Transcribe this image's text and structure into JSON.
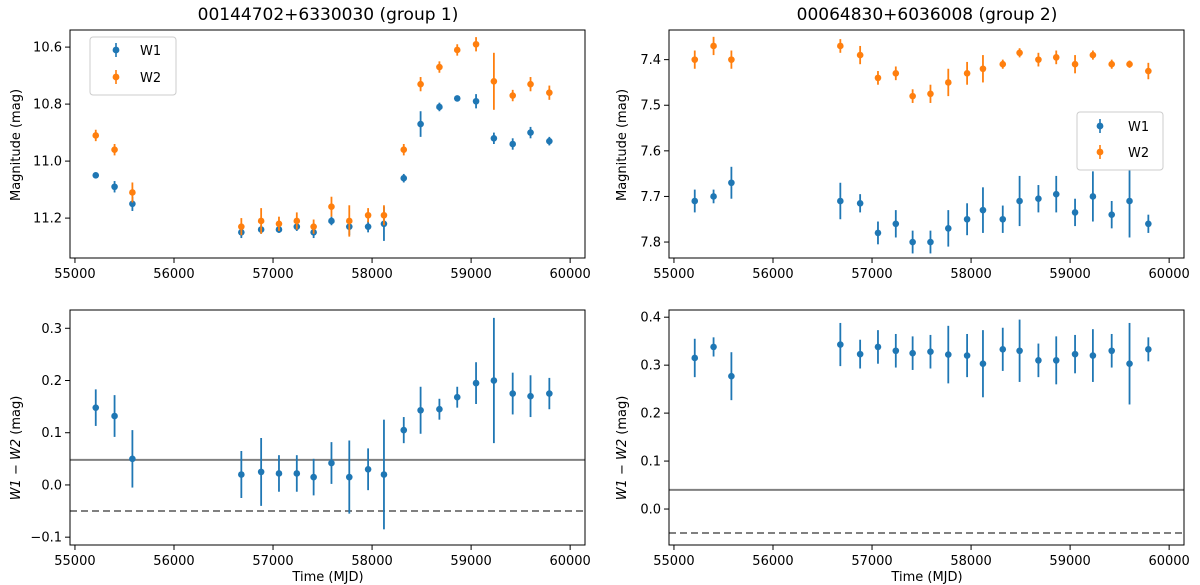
{
  "colors": {
    "w1": "#1f77b4",
    "w2": "#ff7f0e",
    "ref_line": "#808080",
    "axes": "#000000"
  },
  "chart_data": [
    {
      "type": "scatter",
      "title": "00144702+6330030 (group 1)",
      "xlabel": "",
      "ylabel": "Magnitude (mag)",
      "xlim": [
        54950,
        60150
      ],
      "ylim": [
        11.34,
        10.54
      ],
      "y_inverted": true,
      "xticks": [
        55000,
        56000,
        57000,
        58000,
        59000,
        60000
      ],
      "xtick_labels": [
        "55000",
        "56000",
        "57000",
        "58000",
        "59000",
        "60000"
      ],
      "yticks": [
        10.6,
        10.8,
        11.0,
        11.2
      ],
      "ytick_labels": [
        "10.6",
        "10.8",
        "11.0",
        "11.2"
      ],
      "legend": {
        "position": "top-left",
        "entries": [
          "W1",
          "W2"
        ]
      },
      "series": [
        {
          "name": "W1",
          "color_key": "w1",
          "x": [
            55210,
            55400,
            55580,
            56680,
            56880,
            57060,
            57240,
            57410,
            57590,
            57770,
            57960,
            58120,
            58320,
            58490,
            58680,
            58860,
            59050,
            59230,
            59420,
            59600,
            59790
          ],
          "y": [
            11.05,
            11.09,
            11.15,
            11.25,
            11.24,
            11.24,
            11.23,
            11.25,
            11.21,
            11.23,
            11.23,
            11.22,
            11.06,
            10.87,
            10.81,
            10.78,
            10.79,
            10.92,
            10.94,
            10.9,
            10.93
          ],
          "err": [
            0.008,
            0.02,
            0.025,
            0.02,
            0.015,
            0.012,
            0.015,
            0.02,
            0.015,
            0.03,
            0.02,
            0.06,
            0.015,
            0.045,
            0.015,
            0.01,
            0.025,
            0.02,
            0.02,
            0.02,
            0.015
          ]
        },
        {
          "name": "W2",
          "color_key": "w2",
          "x": [
            55210,
            55400,
            55580,
            56680,
            56880,
            57060,
            57240,
            57410,
            57590,
            57770,
            57960,
            58120,
            58320,
            58490,
            58680,
            58860,
            59050,
            59230,
            59420,
            59600,
            59790
          ],
          "y": [
            10.91,
            10.96,
            11.11,
            11.23,
            11.21,
            11.22,
            11.21,
            11.23,
            11.16,
            11.21,
            11.19,
            11.19,
            10.96,
            10.73,
            10.67,
            10.61,
            10.59,
            10.72,
            10.77,
            10.73,
            10.76
          ],
          "err": [
            0.02,
            0.02,
            0.035,
            0.03,
            0.045,
            0.025,
            0.03,
            0.025,
            0.035,
            0.055,
            0.025,
            0.035,
            0.02,
            0.025,
            0.02,
            0.02,
            0.025,
            0.1,
            0.02,
            0.025,
            0.025
          ]
        }
      ]
    },
    {
      "type": "scatter",
      "title": "00064830+6036008 (group 2)",
      "xlabel": "",
      "ylabel": "Magnitude (mag)",
      "xlim": [
        54950,
        60150
      ],
      "ylim": [
        7.835,
        7.335
      ],
      "y_inverted": true,
      "xticks": [
        55000,
        56000,
        57000,
        58000,
        59000,
        60000
      ],
      "xtick_labels": [
        "55000",
        "56000",
        "57000",
        "58000",
        "59000",
        "60000"
      ],
      "yticks": [
        7.4,
        7.5,
        7.6,
        7.7,
        7.8
      ],
      "ytick_labels": [
        "7.4",
        "7.5",
        "7.6",
        "7.7",
        "7.8"
      ],
      "legend": {
        "position": "center-right",
        "entries": [
          "W1",
          "W2"
        ]
      },
      "series": [
        {
          "name": "W1",
          "color_key": "w1",
          "x": [
            55210,
            55400,
            55580,
            56680,
            56880,
            57060,
            57240,
            57410,
            57590,
            57770,
            57960,
            58120,
            58320,
            58490,
            58680,
            58860,
            59050,
            59230,
            59420,
            59600,
            59790
          ],
          "y": [
            7.71,
            7.7,
            7.67,
            7.71,
            7.715,
            7.78,
            7.76,
            7.8,
            7.8,
            7.77,
            7.75,
            7.73,
            7.75,
            7.71,
            7.705,
            7.695,
            7.735,
            7.7,
            7.74,
            7.71,
            7.76
          ],
          "err": [
            0.025,
            0.015,
            0.035,
            0.04,
            0.02,
            0.025,
            0.03,
            0.025,
            0.025,
            0.04,
            0.035,
            0.05,
            0.03,
            0.055,
            0.03,
            0.04,
            0.03,
            0.055,
            0.03,
            0.08,
            0.02
          ]
        },
        {
          "name": "W2",
          "color_key": "w2",
          "x": [
            55210,
            55400,
            55580,
            56680,
            56880,
            57060,
            57240,
            57410,
            57590,
            57770,
            57960,
            58120,
            58320,
            58490,
            58680,
            58860,
            59050,
            59230,
            59420,
            59600,
            59790
          ],
          "y": [
            7.4,
            7.37,
            7.4,
            7.37,
            7.39,
            7.44,
            7.43,
            7.48,
            7.475,
            7.45,
            7.43,
            7.42,
            7.41,
            7.385,
            7.4,
            7.395,
            7.41,
            7.39,
            7.41,
            7.41,
            7.425
          ],
          "err": [
            0.02,
            0.02,
            0.02,
            0.015,
            0.02,
            0.015,
            0.015,
            0.015,
            0.02,
            0.03,
            0.025,
            0.03,
            0.01,
            0.01,
            0.015,
            0.015,
            0.02,
            0.01,
            0.01,
            0.008,
            0.018
          ]
        }
      ]
    },
    {
      "type": "scatter",
      "title": "",
      "xlabel": "Time (MJD)",
      "ylabel_main": "W1 − W2",
      "ylabel_unit": " (mag)",
      "xlim": [
        54950,
        60150
      ],
      "ylim": [
        -0.115,
        0.335
      ],
      "y_inverted": false,
      "xticks": [
        55000,
        56000,
        57000,
        58000,
        59000,
        60000
      ],
      "xtick_labels": [
        "55000",
        "56000",
        "57000",
        "58000",
        "59000",
        "60000"
      ],
      "yticks": [
        -0.1,
        0.0,
        0.1,
        0.2,
        0.3
      ],
      "ytick_labels": [
        "−0.1",
        "0.0",
        "0.1",
        "0.2",
        "0.3"
      ],
      "hlines": [
        {
          "y": 0.048,
          "style": "solid"
        },
        {
          "y": -0.05,
          "style": "dashed"
        }
      ],
      "series": [
        {
          "name": "W1-W2",
          "color_key": "w1",
          "x": [
            55210,
            55400,
            55580,
            56680,
            56880,
            57060,
            57240,
            57410,
            57590,
            57770,
            57960,
            58120,
            58320,
            58490,
            58680,
            58860,
            59050,
            59230,
            59420,
            59600,
            59790
          ],
          "y": [
            0.148,
            0.132,
            0.05,
            0.02,
            0.025,
            0.022,
            0.022,
            0.015,
            0.042,
            0.015,
            0.03,
            0.02,
            0.105,
            0.143,
            0.145,
            0.168,
            0.195,
            0.2,
            0.175,
            0.17,
            0.175
          ],
          "err": [
            0.035,
            0.04,
            0.055,
            0.045,
            0.065,
            0.035,
            0.035,
            0.035,
            0.04,
            0.07,
            0.04,
            0.105,
            0.025,
            0.045,
            0.02,
            0.02,
            0.04,
            0.12,
            0.04,
            0.04,
            0.03
          ]
        }
      ]
    },
    {
      "type": "scatter",
      "title": "",
      "xlabel": "Time (MJD)",
      "ylabel_main": "W1 − W2",
      "ylabel_unit": " (mag)",
      "xlim": [
        54950,
        60150
      ],
      "ylim": [
        -0.075,
        0.415
      ],
      "y_inverted": false,
      "xticks": [
        55000,
        56000,
        57000,
        58000,
        59000,
        60000
      ],
      "xtick_labels": [
        "55000",
        "56000",
        "57000",
        "58000",
        "59000",
        "60000"
      ],
      "yticks": [
        0.0,
        0.1,
        0.2,
        0.3,
        0.4
      ],
      "ytick_labels": [
        "0.0",
        "0.1",
        "0.2",
        "0.3",
        "0.4"
      ],
      "hlines": [
        {
          "y": 0.04,
          "style": "solid"
        },
        {
          "y": -0.05,
          "style": "dashed"
        }
      ],
      "series": [
        {
          "name": "W1-W2",
          "color_key": "w1",
          "x": [
            55210,
            55400,
            55580,
            56680,
            56880,
            57060,
            57240,
            57410,
            57590,
            57770,
            57960,
            58120,
            58320,
            58490,
            58680,
            58860,
            59050,
            59230,
            59420,
            59600,
            59790
          ],
          "y": [
            0.315,
            0.338,
            0.277,
            0.343,
            0.323,
            0.338,
            0.33,
            0.325,
            0.328,
            0.322,
            0.32,
            0.303,
            0.333,
            0.33,
            0.31,
            0.31,
            0.323,
            0.32,
            0.33,
            0.303,
            0.333
          ],
          "err": [
            0.04,
            0.02,
            0.05,
            0.045,
            0.03,
            0.035,
            0.035,
            0.035,
            0.035,
            0.06,
            0.045,
            0.07,
            0.045,
            0.065,
            0.035,
            0.05,
            0.04,
            0.055,
            0.035,
            0.085,
            0.025
          ]
        }
      ]
    }
  ]
}
